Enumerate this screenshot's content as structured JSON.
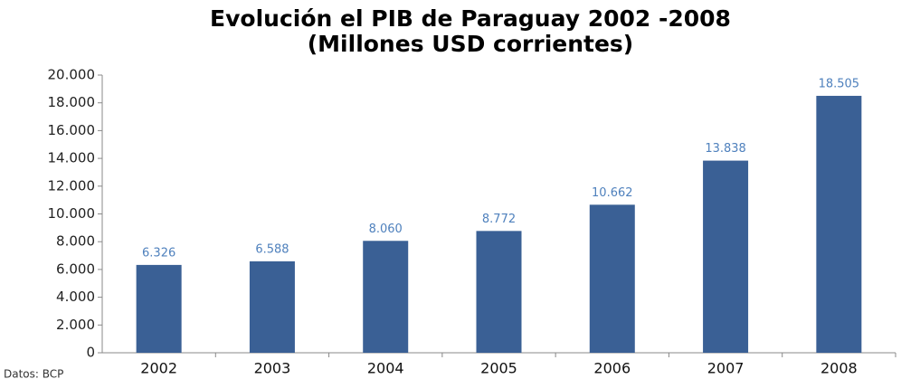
{
  "chart_data": {
    "type": "bar",
    "title": "Evolución el PIB de Paraguay 2002 -2008",
    "subtitle": "(Millones USD corrientes)",
    "source": "Datos: BCP",
    "categories": [
      "2002",
      "2003",
      "2004",
      "2005",
      "2006",
      "2007",
      "2008"
    ],
    "values": [
      6326,
      6588,
      8060,
      8772,
      10662,
      13838,
      18505
    ],
    "value_labels": [
      "6.326",
      "6.588",
      "8.060",
      "8.772",
      "10.662",
      "13.838",
      "18.505"
    ],
    "color": "#3a6095",
    "ylim": [
      0,
      20000
    ],
    "yticks": [
      0,
      {
        "value": 2000,
        "label": "2.000"
      },
      {
        "value": 4000,
        "label": "4.000"
      },
      {
        "value": 6000,
        "label": "6.000"
      },
      {
        "value": 8000,
        "label": "8.000"
      },
      {
        "value": 10000,
        "label": "10.000"
      },
      {
        "value": 12000,
        "label": "12.000"
      },
      {
        "value": 14000,
        "label": "14.000"
      },
      {
        "value": 16000,
        "label": "16.000"
      },
      {
        "value": 18000,
        "label": "18.000"
      },
      {
        "value": 20000,
        "label": "20.000"
      }
    ],
    "grid": false
  }
}
